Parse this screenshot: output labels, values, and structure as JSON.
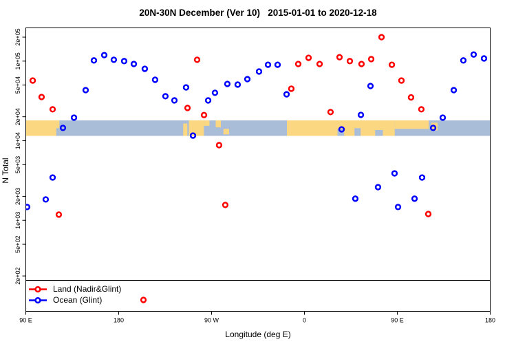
{
  "title": "20N-30N December (Ver 10)   2015-01-01 to 2020-12-18",
  "legend": {
    "items": [
      {
        "label": "Land (Nadir&Glint)",
        "color": "#ff0000"
      },
      {
        "label": "Ocean (Glint)",
        "color": "#0000ff"
      }
    ]
  },
  "chart_data": {
    "type": "scatter",
    "title": "20N-30N December (Ver 10)   2015-01-01 to 2020-12-18",
    "xlabel": "Longitude (deg E)",
    "ylabel": "N Total",
    "x_axis": {
      "note": "longitude axis wraps eastward: 90E -> 180 -> 90W -> 0 -> 90E -> 180",
      "range": [
        90,
        540
      ],
      "tick_positions": [
        90,
        180,
        270,
        360,
        450,
        540
      ],
      "tick_labels": [
        "90 E",
        "180",
        "90 W",
        "0",
        "90 E",
        "180"
      ]
    },
    "y_axis": {
      "scale": "log10",
      "range": [
        70,
        260000
      ],
      "tick_values": [
        200000,
        100000,
        50000,
        20000,
        10000,
        5000,
        2000,
        1000,
        500,
        200
      ],
      "tick_labels": [
        "2e+05",
        "1e+05",
        "5e+04",
        "2e+04",
        "1e+04",
        "5e+03",
        "2e+03",
        "1e+03",
        "5e+02",
        "2e+02"
      ]
    },
    "series": [
      {
        "name": "Land (Nadir&Glint)",
        "color": "#ff0000",
        "marker": "open-circle",
        "points": [
          [
            96.7,
            57000
          ],
          [
            105.3,
            35400
          ],
          [
            116,
            24800
          ],
          [
            122,
            1180
          ],
          [
            204,
            100
          ],
          [
            246.7,
            25800
          ],
          [
            256,
            104000
          ],
          [
            262.7,
            21000
          ],
          [
            277.3,
            8800
          ],
          [
            283.3,
            1560
          ],
          [
            347.3,
            45000
          ],
          [
            354,
            92000
          ],
          [
            364,
            110000
          ],
          [
            374.7,
            92000
          ],
          [
            385.3,
            22900
          ],
          [
            394,
            112000
          ],
          [
            404,
            100000
          ],
          [
            415.3,
            92000
          ],
          [
            424.7,
            106000
          ],
          [
            434.7,
            200000
          ],
          [
            444.7,
            90000
          ],
          [
            454,
            57000
          ],
          [
            463.3,
            35000
          ],
          [
            473.3,
            24800
          ],
          [
            480,
            1200
          ]
        ]
      },
      {
        "name": "Ocean (Glint)",
        "color": "#0000ff",
        "marker": "open-circle",
        "points": [
          [
            91.3,
            1470
          ],
          [
            109.3,
            1830
          ],
          [
            116,
            3450
          ],
          [
            126,
            14500
          ],
          [
            136.7,
            19500
          ],
          [
            148,
            43200
          ],
          [
            156,
            102000
          ],
          [
            166,
            119000
          ],
          [
            175.3,
            104000
          ],
          [
            185.3,
            100000
          ],
          [
            194.7,
            92000
          ],
          [
            205.3,
            80000
          ],
          [
            215.3,
            58300
          ],
          [
            225.3,
            36200
          ],
          [
            234,
            32100
          ],
          [
            245.3,
            46800
          ],
          [
            252,
            11600
          ],
          [
            266.7,
            32100
          ],
          [
            273.3,
            40000
          ],
          [
            285.3,
            51700
          ],
          [
            295.3,
            50700
          ],
          [
            304.7,
            59400
          ],
          [
            316,
            74000
          ],
          [
            324.7,
            90000
          ],
          [
            334,
            90000
          ],
          [
            342.7,
            38300
          ],
          [
            396,
            13900
          ],
          [
            409.3,
            1870
          ],
          [
            414.7,
            21100
          ],
          [
            424,
            48700
          ],
          [
            431.3,
            2610
          ],
          [
            447.3,
            3890
          ],
          [
            450.7,
            1470
          ],
          [
            466.7,
            1870
          ],
          [
            474,
            3450
          ],
          [
            484.7,
            14500
          ],
          [
            494,
            19500
          ],
          [
            504.7,
            43200
          ],
          [
            514,
            102000
          ],
          [
            524,
            121000
          ],
          [
            534,
            108000
          ]
        ]
      }
    ],
    "map_band": {
      "description": "world coastline strip for 20N-30N drawn across the plot",
      "value_range": [
        11500,
        18000
      ],
      "ocean_color": "#a9bdd9",
      "land_color": "#fcd781",
      "land_segments": [
        {
          "lon": [
            90,
            119.5
          ],
          "frac": [
            0,
            1
          ],
          "name": "asia-east"
        },
        {
          "lon": [
            119.5,
            122.5
          ],
          "frac": [
            0,
            0.5
          ],
          "name": "china-coast"
        },
        {
          "lon": [
            242.5,
            246.5
          ],
          "frac": [
            0.2,
            1
          ],
          "name": "baja-california"
        },
        {
          "lon": [
            248,
            262.5
          ],
          "frac": [
            0,
            1
          ],
          "name": "mexico"
        },
        {
          "lon": [
            262.5,
            268
          ],
          "frac": [
            0,
            0.35
          ],
          "name": "gulf-coast"
        },
        {
          "lon": [
            274,
            279
          ],
          "frac": [
            0,
            0.45
          ],
          "name": "florida"
        },
        {
          "lon": [
            281.5,
            287
          ],
          "frac": [
            0.55,
            0.9
          ],
          "name": "cuba"
        },
        {
          "lon": [
            343,
            447.5
          ],
          "frac": [
            0,
            1
          ],
          "name": "africa-arabia-india"
        },
        {
          "lon": [
            447.5,
            480.5
          ],
          "frac": [
            0,
            0.55
          ],
          "name": "se-asia"
        },
        {
          "lon": [
            483,
            489
          ],
          "frac": [
            0.15,
            0.65
          ],
          "name": "taiwan-ryukyu"
        }
      ],
      "ocean_notches": [
        {
          "lon": [
            392,
            398.5
          ],
          "frac": [
            0.55,
            1
          ],
          "name": "red-sea"
        },
        {
          "lon": [
            408.5,
            414.5
          ],
          "frac": [
            0.5,
            1
          ],
          "name": "persian-gulf"
        },
        {
          "lon": [
            428.5,
            436
          ],
          "frac": [
            0.62,
            1
          ],
          "name": "arabian-sea-coast"
        }
      ]
    }
  }
}
